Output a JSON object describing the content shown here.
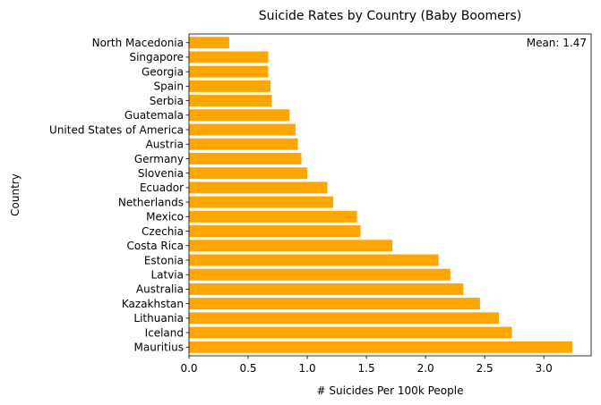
{
  "chart_data": {
    "type": "bar",
    "orientation": "horizontal",
    "title": "Suicide Rates by Country (Baby Boomers)",
    "xlabel": "# Suicides Per 100k People",
    "ylabel": "Country",
    "xlim": [
      0,
      3.4
    ],
    "x_ticks": [
      "0.0",
      "0.5",
      "1.0",
      "1.5",
      "2.0",
      "2.5",
      "3.0"
    ],
    "bar_color": "#ffa500",
    "grid": false,
    "legend": "none",
    "annotation": "Mean: 1.47",
    "categories": [
      "Mauritius",
      "Iceland",
      "Lithuania",
      "Kazakhstan",
      "Australia",
      "Latvia",
      "Estonia",
      "Costa Rica",
      "Czechia",
      "Mexico",
      "Netherlands",
      "Ecuador",
      "Slovenia",
      "Germany",
      "Austria",
      "United States of America",
      "Guatemala",
      "Serbia",
      "Spain",
      "Georgia",
      "Singapore",
      "North Macedonia"
    ],
    "values": [
      3.24,
      2.73,
      2.62,
      2.46,
      2.32,
      2.21,
      2.11,
      1.72,
      1.45,
      1.42,
      1.22,
      1.17,
      1.0,
      0.95,
      0.92,
      0.9,
      0.85,
      0.7,
      0.69,
      0.67,
      0.67,
      0.34
    ]
  }
}
